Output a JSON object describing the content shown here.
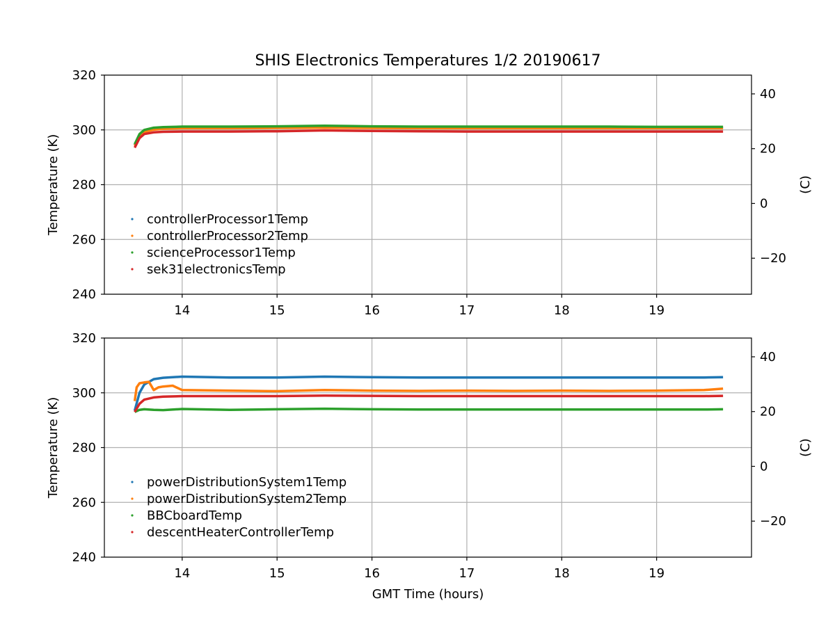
{
  "figure": {
    "title": "SHIS Electronics Temperatures 1/2 20190617",
    "xlabel": "GMT Time (hours)"
  },
  "chart_data": [
    {
      "type": "line",
      "xlabel": "",
      "ylabel": "Temperature (K)",
      "ylabel_right": "(C)",
      "xlim": [
        13.18,
        20.0
      ],
      "ylim": [
        240,
        320
      ],
      "ylim_right_celsius": [
        -33.15,
        46.85
      ],
      "xticks": [
        14,
        15,
        16,
        17,
        18,
        19
      ],
      "yticks": [
        240,
        260,
        280,
        300,
        320
      ],
      "yticks_right": [
        -20,
        0,
        20,
        40
      ],
      "grid": true,
      "legend_placement": "lower-left",
      "series": [
        {
          "name": "controllerProcessor1Temp",
          "color": "#1f77b4",
          "x": [
            13.5,
            13.55,
            13.6,
            13.7,
            13.8,
            14.0,
            14.5,
            15.0,
            15.5,
            16.0,
            16.5,
            17.0,
            17.5,
            18.0,
            18.5,
            19.0,
            19.5,
            19.7
          ],
          "y": [
            294.5,
            298.0,
            299.5,
            300.3,
            300.6,
            300.8,
            300.8,
            300.9,
            301.0,
            300.9,
            300.8,
            300.8,
            300.8,
            300.8,
            300.8,
            300.8,
            300.8,
            300.8
          ]
        },
        {
          "name": "controllerProcessor2Temp",
          "color": "#ff7f0e",
          "x": [
            13.5,
            13.55,
            13.6,
            13.7,
            13.8,
            14.0,
            14.5,
            15.0,
            15.5,
            16.0,
            16.5,
            17.0,
            17.5,
            18.0,
            18.5,
            19.0,
            19.5,
            19.7
          ],
          "y": [
            294.2,
            297.8,
            299.3,
            300.1,
            300.4,
            300.6,
            300.6,
            300.7,
            300.8,
            300.7,
            300.6,
            300.6,
            300.6,
            300.6,
            300.6,
            300.6,
            300.6,
            300.6
          ]
        },
        {
          "name": "scienceProcessor1Temp",
          "color": "#2ca02c",
          "x": [
            13.5,
            13.55,
            13.6,
            13.7,
            13.8,
            14.0,
            14.5,
            15.0,
            15.5,
            16.0,
            16.5,
            17.0,
            17.5,
            18.0,
            18.5,
            19.0,
            19.5,
            19.7
          ],
          "y": [
            294.8,
            298.5,
            300.0,
            300.8,
            301.0,
            301.2,
            301.2,
            301.3,
            301.5,
            301.3,
            301.2,
            301.2,
            301.2,
            301.2,
            301.2,
            301.1,
            301.1,
            301.1
          ]
        },
        {
          "name": "sek31electronicsTemp",
          "color": "#d62728",
          "x": [
            13.5,
            13.55,
            13.6,
            13.7,
            13.8,
            14.0,
            14.5,
            15.0,
            15.5,
            16.0,
            16.5,
            17.0,
            17.5,
            18.0,
            18.5,
            19.0,
            19.5,
            19.7
          ],
          "y": [
            293.5,
            297.0,
            298.5,
            299.1,
            299.3,
            299.4,
            299.4,
            299.5,
            299.8,
            299.6,
            299.5,
            299.4,
            299.4,
            299.4,
            299.4,
            299.4,
            299.4,
            299.4
          ]
        }
      ]
    },
    {
      "type": "line",
      "xlabel": "GMT Time (hours)",
      "ylabel": "Temperature (K)",
      "ylabel_right": "(C)",
      "xlim": [
        13.18,
        20.0
      ],
      "ylim": [
        240,
        320
      ],
      "ylim_right_celsius": [
        -33.15,
        46.85
      ],
      "xticks": [
        14,
        15,
        16,
        17,
        18,
        19
      ],
      "yticks": [
        240,
        260,
        280,
        300,
        320
      ],
      "yticks_right": [
        -20,
        0,
        20,
        40
      ],
      "grid": true,
      "legend_placement": "lower-left",
      "series": [
        {
          "name": "powerDistributionSystem1Temp",
          "color": "#1f77b4",
          "x": [
            13.5,
            13.55,
            13.6,
            13.7,
            13.8,
            14.0,
            14.5,
            15.0,
            15.5,
            16.0,
            16.5,
            17.0,
            17.5,
            18.0,
            18.5,
            19.0,
            19.5,
            19.7
          ],
          "y": [
            293.5,
            300.0,
            303.0,
            305.0,
            305.5,
            305.9,
            305.6,
            305.6,
            305.9,
            305.7,
            305.6,
            305.6,
            305.6,
            305.6,
            305.6,
            305.6,
            305.6,
            305.7
          ]
        },
        {
          "name": "powerDistributionSystem2Temp",
          "color": "#ff7f0e",
          "x": [
            13.5,
            13.52,
            13.55,
            13.6,
            13.65,
            13.7,
            13.75,
            13.8,
            13.9,
            14.0,
            14.5,
            15.0,
            15.5,
            16.0,
            16.5,
            17.0,
            17.5,
            18.0,
            18.5,
            19.0,
            19.5,
            19.7
          ],
          "y": [
            297.0,
            302.0,
            303.5,
            303.8,
            304.0,
            301.0,
            302.0,
            302.3,
            302.6,
            301.0,
            300.8,
            300.6,
            301.0,
            300.8,
            300.7,
            300.8,
            300.7,
            300.8,
            300.7,
            300.8,
            301.0,
            301.5
          ]
        },
        {
          "name": "BBCboardTemp",
          "color": "#2ca02c",
          "x": [
            13.5,
            13.55,
            13.6,
            13.7,
            13.8,
            14.0,
            14.5,
            15.0,
            15.5,
            16.0,
            16.5,
            17.0,
            17.5,
            18.0,
            18.5,
            19.0,
            19.5,
            19.7
          ],
          "y": [
            293.0,
            293.8,
            294.0,
            293.8,
            293.7,
            294.1,
            293.8,
            294.0,
            294.2,
            294.0,
            293.9,
            293.9,
            293.9,
            293.9,
            293.9,
            293.9,
            293.9,
            294.0
          ]
        },
        {
          "name": "descentHeaterControllerTemp",
          "color": "#d62728",
          "x": [
            13.5,
            13.55,
            13.6,
            13.7,
            13.8,
            14.0,
            14.5,
            15.0,
            15.5,
            16.0,
            16.5,
            17.0,
            17.5,
            18.0,
            18.5,
            19.0,
            19.5,
            19.7
          ],
          "y": [
            293.0,
            296.0,
            297.5,
            298.3,
            298.6,
            298.8,
            298.8,
            298.8,
            299.0,
            298.9,
            298.8,
            298.8,
            298.8,
            298.8,
            298.8,
            298.8,
            298.8,
            298.9
          ]
        }
      ]
    }
  ]
}
